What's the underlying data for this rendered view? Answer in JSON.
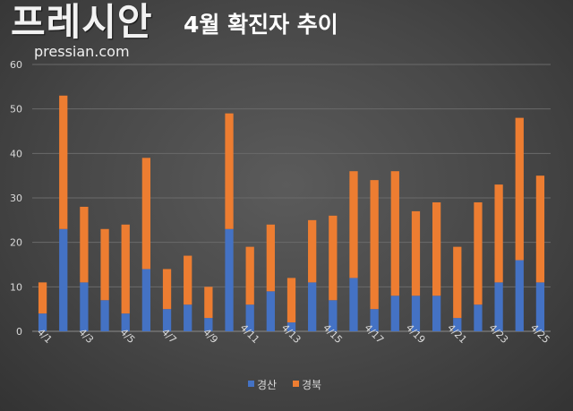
{
  "logo": {
    "text": "프레시안",
    "sub": "pressian.com"
  },
  "chart_data": {
    "type": "bar",
    "stacked": true,
    "title": "4월 확진자 추이",
    "categories": [
      "4/1",
      "4/2",
      "4/3",
      "4/4",
      "4/5",
      "4/6",
      "4/7",
      "4/8",
      "4/9",
      "4/10",
      "4/11",
      "4/12",
      "4/13",
      "4/14",
      "4/15",
      "4/16",
      "4/17",
      "4/18",
      "4/19",
      "4/20",
      "4/21",
      "4/22",
      "4/23",
      "4/24",
      "4/25"
    ],
    "tick_labels": [
      "4/1",
      "4/3",
      "4/5",
      "4/7",
      "4/9",
      "4/11",
      "4/13",
      "4/15",
      "4/17",
      "4/19",
      "4/21",
      "4/23",
      "4/25"
    ],
    "series": [
      {
        "name": "경산",
        "color": "#4472C4",
        "values": [
          4,
          23,
          11,
          7,
          4,
          14,
          5,
          6,
          3,
          23,
          6,
          9,
          2,
          11,
          7,
          12,
          5,
          8,
          8,
          8,
          3,
          6,
          11,
          16,
          11
        ]
      },
      {
        "name": "경북",
        "color": "#ED7D31",
        "values": [
          7,
          30,
          17,
          16,
          20,
          25,
          9,
          11,
          7,
          26,
          13,
          15,
          10,
          14,
          19,
          24,
          29,
          28,
          19,
          21,
          16,
          23,
          22,
          32,
          24
        ]
      }
    ],
    "yticks": [
      0,
      10,
      20,
      30,
      40,
      50,
      60
    ],
    "ylim": [
      0,
      60
    ],
    "grid": true,
    "legend": "bottom-center"
  }
}
